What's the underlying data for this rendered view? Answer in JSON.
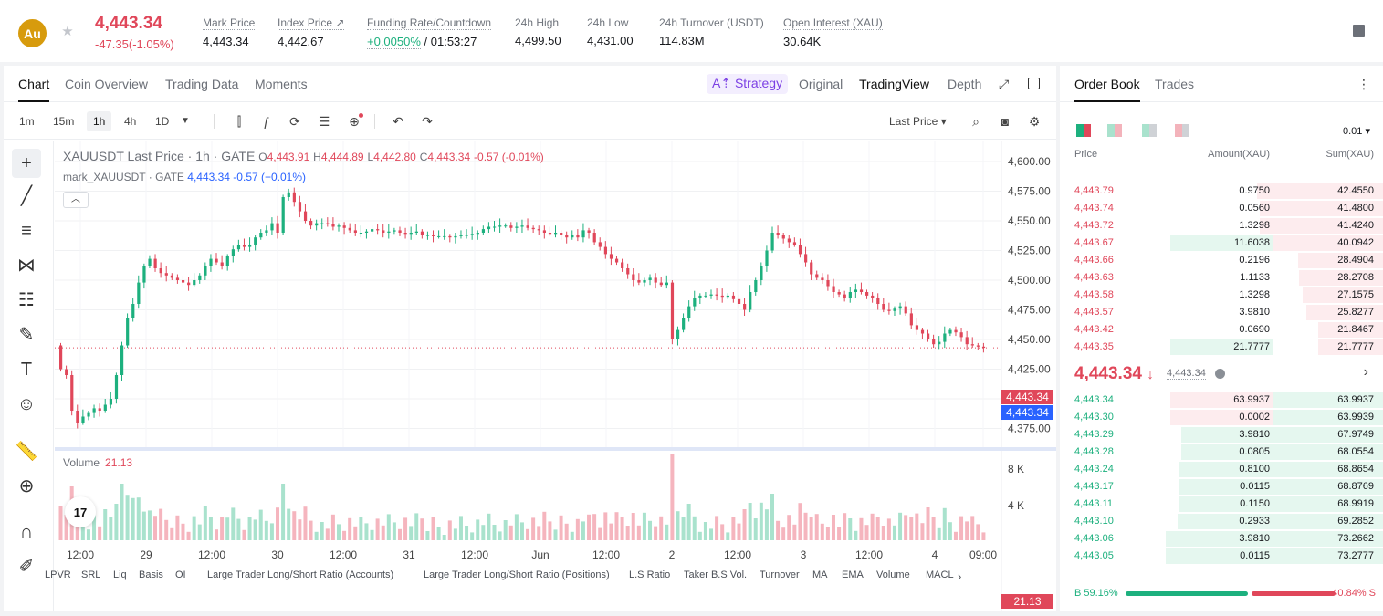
{
  "ticker": {
    "coin_abbr": "Au",
    "last_price": "4,443.34",
    "change": "-47.35(-1.05%)",
    "stats": [
      {
        "label": "Mark Price",
        "value": "4,443.34"
      },
      {
        "label": "Index Price ↗",
        "value": "4,442.67"
      },
      {
        "label": "Funding Rate/Countdown",
        "value_green": "+0.0050%",
        "value": " / 01:53:27"
      },
      {
        "label": "24h High",
        "value": "4,499.50"
      },
      {
        "label": "24h Low",
        "value": "4,431.00"
      },
      {
        "label": "24h Turnover (USDT)",
        "value": "114.83M"
      },
      {
        "label": "Open Interest (XAU)",
        "value": "30.64K"
      }
    ]
  },
  "chart_tabs": [
    "Chart",
    "Coin Overview",
    "Trading Data",
    "Moments"
  ],
  "view_tabs": {
    "strategy": "A⇡ Strategy",
    "original": "Original",
    "tradingview": "TradingView",
    "depth": "Depth"
  },
  "timeframes": [
    "1m",
    "15m",
    "1h",
    "4h",
    "1D"
  ],
  "price_type": "Last Price ▾",
  "legend": {
    "symbol": "XAUUSDT Last Price · 1h · GATE",
    "o_label": "O",
    "o": "4,443.91",
    "h_label": "H",
    "h": "4,444.89",
    "l_label": "L",
    "l": "4,442.80",
    "c_label": "C",
    "c": "4,443.34",
    "chg": "-0.57 (-0.01%)",
    "mark_label": "mark_XAUUSDT · GATE",
    "mark_val": "4,443.34  -0.57 (−0.01%)",
    "volume_label": "Volume",
    "volume_val": "21.13"
  },
  "price_tags": {
    "last": "4,443.34",
    "mark": "4,443.34",
    "volume": "21.13"
  },
  "indicators": [
    "LPVR",
    "SRL",
    "Liq",
    "Basis",
    "OI",
    "Large Trader Long/Short Ratio (Accounts)",
    "Large Trader Long/Short Ratio (Positions)",
    "L.S Ratio",
    "Taker B.S Vol.",
    "Turnover",
    "MA",
    "EMA",
    "Volume",
    "MACL"
  ],
  "chart_data": {
    "type": "candlestick",
    "title": "XAUUSDT Last Price · 1h · GATE",
    "y_ticks": [
      "4,600.00",
      "4,575.00",
      "4,550.00",
      "4,525.00",
      "4,500.00",
      "4,475.00",
      "4,450.00",
      "4,425.00",
      "4,400.00",
      "4,375.00"
    ],
    "ylim": [
      4360,
      4610
    ],
    "x_ticks": [
      "12:00",
      "29",
      "12:00",
      "30",
      "12:00",
      "31",
      "12:00",
      "Jun",
      "12:00",
      "2",
      "12:00",
      "3",
      "12:00",
      "4",
      "09:00"
    ],
    "close_series": [
      4425,
      4420,
      4390,
      4380,
      4385,
      4388,
      4392,
      4390,
      4395,
      4400,
      4420,
      4445,
      4468,
      4480,
      4498,
      4512,
      4518,
      4510,
      4506,
      4504,
      4502,
      4500,
      4498,
      4496,
      4500,
      4504,
      4512,
      4518,
      4515,
      4512,
      4520,
      4526,
      4530,
      4528,
      4530,
      4536,
      4540,
      4542,
      4548,
      4540,
      4570,
      4574,
      4566,
      4558,
      4550,
      4546,
      4548,
      4548,
      4547,
      4545,
      4546,
      4544,
      4542,
      4540,
      4540,
      4541,
      4543,
      4542,
      4540,
      4541,
      4542,
      4540,
      4539,
      4540,
      4541,
      4538,
      4538,
      4537,
      4537,
      4537,
      4536,
      4537,
      4538,
      4538,
      4539,
      4540,
      4543,
      4545,
      4545,
      4546,
      4546,
      4544,
      4545,
      4546,
      4544,
      4543,
      4542,
      4540,
      4539,
      4540,
      4538,
      4536,
      4538,
      4536,
      4542,
      4540,
      4532,
      4528,
      4522,
      4518,
      4515,
      4510,
      4505,
      4500,
      4498,
      4500,
      4502,
      4498,
      4496,
      4498,
      4450,
      4458,
      4468,
      4478,
      4485,
      4487,
      4487,
      4488,
      4487,
      4486,
      4487,
      4484,
      4480,
      4475,
      4490,
      4500,
      4512,
      4525,
      4540,
      4538,
      4535,
      4532,
      4530,
      4522,
      4515,
      4505,
      4502,
      4500,
      4495,
      4490,
      4488,
      4485,
      4490,
      4492,
      4490,
      4487,
      4485,
      4480,
      4475,
      4474,
      4476,
      4478,
      4472,
      4462,
      4458,
      4455,
      4450,
      4446,
      4448,
      4455,
      4458,
      4456,
      4452,
      4446,
      4445,
      4444,
      4443
    ],
    "volume_yticks": [
      "8 K",
      "4 K"
    ]
  },
  "orderbook": {
    "tabs": [
      "Order Book",
      "Trades"
    ],
    "precision": "0.01 ▾",
    "headers": {
      "price": "Price",
      "amount": "Amount(XAU)",
      "sum": "Sum(XAU)"
    },
    "asks": [
      {
        "price": "4,443.79",
        "amount": "0.9750",
        "sum": "42.4550"
      },
      {
        "price": "4,443.74",
        "amount": "0.0560",
        "sum": "41.4800"
      },
      {
        "price": "4,443.72",
        "amount": "1.3298",
        "sum": "41.4240"
      },
      {
        "price": "4,443.67",
        "amount": "11.6038",
        "sum": "40.0942"
      },
      {
        "price": "4,443.66",
        "amount": "0.2196",
        "sum": "28.4904"
      },
      {
        "price": "4,443.63",
        "amount": "1.1133",
        "sum": "28.2708"
      },
      {
        "price": "4,443.58",
        "amount": "1.3298",
        "sum": "27.1575"
      },
      {
        "price": "4,443.57",
        "amount": "3.9810",
        "sum": "25.8277"
      },
      {
        "price": "4,443.42",
        "amount": "0.0690",
        "sum": "21.8467"
      },
      {
        "price": "4,443.35",
        "amount": "21.7777",
        "sum": "21.7777"
      }
    ],
    "mid_price": "4,443.34",
    "mid_arrow": "↓",
    "mark_price": "4,443.34",
    "bids": [
      {
        "price": "4,443.34",
        "amount": "63.9937",
        "sum": "63.9937"
      },
      {
        "price": "4,443.30",
        "amount": "0.0002",
        "sum": "63.9939"
      },
      {
        "price": "4,443.29",
        "amount": "3.9810",
        "sum": "67.9749"
      },
      {
        "price": "4,443.28",
        "amount": "0.0805",
        "sum": "68.0554"
      },
      {
        "price": "4,443.24",
        "amount": "0.8100",
        "sum": "68.8654"
      },
      {
        "price": "4,443.17",
        "amount": "0.0115",
        "sum": "68.8769"
      },
      {
        "price": "4,443.11",
        "amount": "0.1150",
        "sum": "68.9919"
      },
      {
        "price": "4,443.10",
        "amount": "0.2933",
        "sum": "69.2852"
      },
      {
        "price": "4,443.06",
        "amount": "3.9810",
        "sum": "73.2662"
      },
      {
        "price": "4,443.05",
        "amount": "0.0115",
        "sum": "73.2777"
      }
    ],
    "buy_ratio": "B 59.16%",
    "sell_ratio": "40.84% S",
    "buy_fraction": 0.5916
  },
  "colors": {
    "up": "#1db07e",
    "down": "#e0475a",
    "accent": "#7b3fe4",
    "mark_blue": "#2962ff"
  }
}
